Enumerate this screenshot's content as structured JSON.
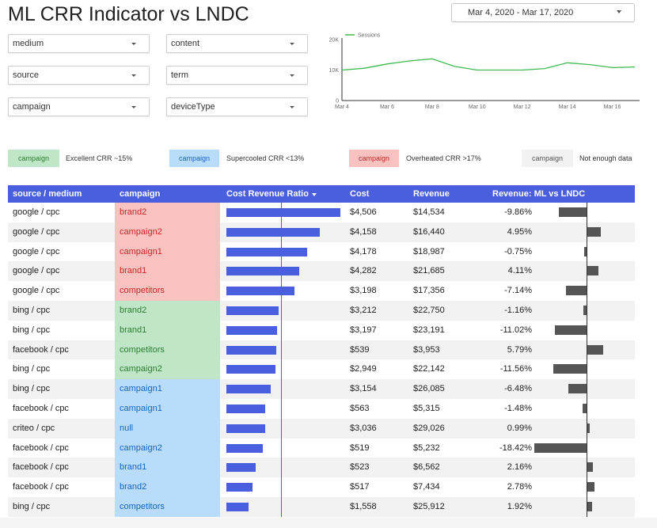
{
  "title": "ML CRR Indicator vs LNDC",
  "date_range": "Mar 4, 2020 - Mar 17, 2020",
  "filters": [
    {
      "label": "medium"
    },
    {
      "label": "content"
    },
    {
      "label": "source"
    },
    {
      "label": "term"
    },
    {
      "label": "campaign"
    },
    {
      "label": "deviceType"
    }
  ],
  "chart_data": {
    "type": "line",
    "series": [
      {
        "name": "Sessions",
        "values": [
          10000,
          10600,
          12000,
          13000,
          13700,
          11200,
          10000,
          10000,
          10000,
          10500,
          12400,
          11800,
          10800,
          11000
        ]
      }
    ],
    "x": [
      "Mar 4",
      "Mar 5",
      "Mar 6",
      "Mar 7",
      "Mar 8",
      "Mar 9",
      "Mar 10",
      "Mar 11",
      "Mar 12",
      "Mar 13",
      "Mar 14",
      "Mar 15",
      "Mar 16",
      "Mar 17"
    ],
    "x_tick_labels": [
      "Mar 4",
      "Mar 6",
      "Mar 8",
      "Mar 10",
      "Mar 12",
      "Mar 14",
      "Mar 16"
    ],
    "y_tick_labels": [
      "20K",
      "10K",
      "0"
    ],
    "ylim": [
      0,
      20000
    ],
    "color": "#3fb950"
  },
  "legend": [
    {
      "chip": "campaign",
      "text": "Excellent CRR ~15%",
      "bg": "#bfe6c6",
      "fg": "#2e7d32"
    },
    {
      "chip": "campaign",
      "text": "Supercooled CRR <13%",
      "bg": "#b9dcfb",
      "fg": "#1565c0"
    },
    {
      "chip": "campaign",
      "text": "Overheated CRR >17%",
      "bg": "#f8c2c0",
      "fg": "#c62828"
    },
    {
      "chip": "campaign",
      "text": "Not enough data",
      "bg": "#f2f2f2",
      "fg": "#555555"
    }
  ],
  "table": {
    "headers": {
      "source_medium": "source / medium",
      "campaign": "campaign",
      "crr": "Cost Revenue Ratio",
      "cost": "Cost",
      "revenue": "Revenue",
      "diff": "Revenue: ML vs LNDC"
    },
    "rows": [
      {
        "source": "google / cpc",
        "campaign": "brand2",
        "group": "red",
        "cost": "$4,506",
        "revenue": "$14,534",
        "diff": "-9.86%",
        "crr": 0.31,
        "diff_val": -9.86
      },
      {
        "source": "google / cpc",
        "campaign": "campaign2",
        "group": "red",
        "cost": "$4,158",
        "revenue": "$16,440",
        "diff": "4.95%",
        "crr": 0.253,
        "diff_val": 4.95
      },
      {
        "source": "google / cpc",
        "campaign": "campaign1",
        "group": "red",
        "cost": "$4,178",
        "revenue": "$18,987",
        "diff": "-0.75%",
        "crr": 0.22,
        "diff_val": -0.75
      },
      {
        "source": "google / cpc",
        "campaign": "brand1",
        "group": "red",
        "cost": "$4,282",
        "revenue": "$21,685",
        "diff": "4.11%",
        "crr": 0.197,
        "diff_val": 4.11
      },
      {
        "source": "google / cpc",
        "campaign": "competitors",
        "group": "red",
        "cost": "$3,198",
        "revenue": "$17,356",
        "diff": "-7.14%",
        "crr": 0.184,
        "diff_val": -7.14
      },
      {
        "source": "bing / cpc",
        "campaign": "brand2",
        "group": "green",
        "cost": "$3,212",
        "revenue": "$22,750",
        "diff": "-1.16%",
        "crr": 0.141,
        "diff_val": -1.16
      },
      {
        "source": "bing / cpc",
        "campaign": "brand1",
        "group": "green",
        "cost": "$3,197",
        "revenue": "$23,191",
        "diff": "-11.02%",
        "crr": 0.138,
        "diff_val": -11.02
      },
      {
        "source": "facebook / cpc",
        "campaign": "competitors",
        "group": "green",
        "cost": "$539",
        "revenue": "$3,953",
        "diff": "5.79%",
        "crr": 0.136,
        "diff_val": 5.79
      },
      {
        "source": "bing / cpc",
        "campaign": "campaign2",
        "group": "green",
        "cost": "$2,949",
        "revenue": "$22,142",
        "diff": "-11.56%",
        "crr": 0.133,
        "diff_val": -11.56
      },
      {
        "source": "bing / cpc",
        "campaign": "campaign1",
        "group": "blue",
        "cost": "$3,154",
        "revenue": "$26,085",
        "diff": "-6.48%",
        "crr": 0.121,
        "diff_val": -6.48
      },
      {
        "source": "facebook / cpc",
        "campaign": "campaign1",
        "group": "blue",
        "cost": "$563",
        "revenue": "$5,315",
        "diff": "-1.48%",
        "crr": 0.106,
        "diff_val": -1.48
      },
      {
        "source": "criteo / cpc",
        "campaign": "null",
        "group": "blue",
        "cost": "$3,036",
        "revenue": "$29,026",
        "diff": "0.99%",
        "crr": 0.105,
        "diff_val": 0.99
      },
      {
        "source": "facebook / cpc",
        "campaign": "campaign2",
        "group": "blue",
        "cost": "$519",
        "revenue": "$5,232",
        "diff": "-18.42%",
        "crr": 0.099,
        "diff_val": -18.42
      },
      {
        "source": "facebook / cpc",
        "campaign": "brand1",
        "group": "blue",
        "cost": "$523",
        "revenue": "$6,562",
        "diff": "2.16%",
        "crr": 0.08,
        "diff_val": 2.16
      },
      {
        "source": "facebook / cpc",
        "campaign": "brand2",
        "group": "blue",
        "cost": "$517",
        "revenue": "$7,434",
        "diff": "2.78%",
        "crr": 0.07,
        "diff_val": 2.78
      },
      {
        "source": "bing / cpc",
        "campaign": "competitors",
        "group": "blue",
        "cost": "$1,558",
        "revenue": "$25,912",
        "diff": "1.92%",
        "crr": 0.06,
        "diff_val": 1.92
      }
    ]
  }
}
